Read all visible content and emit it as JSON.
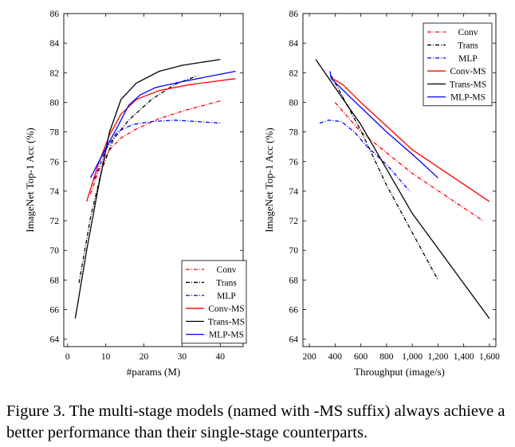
{
  "chart_data": [
    {
      "type": "line",
      "title": "",
      "xlabel": "#params (M)",
      "ylabel": "ImageNet Top-1 Acc (%)",
      "xlim": [
        -1,
        46
      ],
      "ylim": [
        63.5,
        86
      ],
      "xticks": [
        0,
        10,
        20,
        30,
        40
      ],
      "yticks": [
        64,
        66,
        68,
        70,
        72,
        74,
        76,
        78,
        80,
        82,
        84,
        86
      ],
      "legend_position": "bottom-right",
      "grid": false,
      "series": [
        {
          "name": "Conv",
          "color": "#ff0000",
          "dash": "dashdot",
          "points": [
            [
              6,
              73.8
            ],
            [
              8,
              75.3
            ],
            [
              11,
              76.8
            ],
            [
              14,
              77.6
            ],
            [
              18,
              78.2
            ],
            [
              24,
              78.9
            ],
            [
              30,
              79.4
            ],
            [
              40,
              80.1
            ]
          ]
        },
        {
          "name": "Trans",
          "color": "#000000",
          "dash": "dashdot",
          "points": [
            [
              3,
              67.8
            ],
            [
              6,
              72.2
            ],
            [
              9,
              75.5
            ],
            [
              12,
              77.5
            ],
            [
              16,
              78.8
            ],
            [
              22,
              80.2
            ],
            [
              28,
              81.2
            ],
            [
              34,
              81.8
            ]
          ]
        },
        {
          "name": "MLP",
          "color": "#0000ff",
          "dash": "dashdot",
          "points": [
            [
              7,
              74.8
            ],
            [
              10,
              76.8
            ],
            [
              13,
              78.0
            ],
            [
              17,
              78.5
            ],
            [
              22,
              78.7
            ],
            [
              28,
              78.8
            ],
            [
              34,
              78.7
            ],
            [
              40,
              78.6
            ]
          ]
        },
        {
          "name": "Conv-MS",
          "color": "#ff0000",
          "dash": "solid",
          "points": [
            [
              5,
              73.3
            ],
            [
              8,
              75.8
            ],
            [
              11,
              77.8
            ],
            [
              14,
              79.2
            ],
            [
              18,
              80.2
            ],
            [
              24,
              80.8
            ],
            [
              32,
              81.2
            ],
            [
              44,
              81.6
            ]
          ]
        },
        {
          "name": "Trans-MS",
          "color": "#000000",
          "dash": "solid",
          "points": [
            [
              2,
              65.4
            ],
            [
              5,
              70.0
            ],
            [
              8,
              74.2
            ],
            [
              11,
              78.0
            ],
            [
              14,
              80.2
            ],
            [
              18,
              81.3
            ],
            [
              24,
              82.1
            ],
            [
              30,
              82.5
            ],
            [
              40,
              82.9
            ]
          ]
        },
        {
          "name": "MLP-MS",
          "color": "#0000ff",
          "dash": "solid",
          "points": [
            [
              6,
              74.9
            ],
            [
              8,
              75.9
            ],
            [
              10,
              76.9
            ],
            [
              13,
              78.3
            ],
            [
              16,
              79.8
            ],
            [
              19,
              80.5
            ],
            [
              23,
              81.0
            ],
            [
              30,
              81.4
            ],
            [
              38,
              81.8
            ],
            [
              44,
              82.1
            ]
          ]
        }
      ]
    },
    {
      "type": "line",
      "title": "",
      "xlabel": "Throughput (image/s)",
      "ylabel": "ImageNet Top-1 Acc (%)",
      "xlim": [
        150,
        1650
      ],
      "ylim": [
        63.5,
        86
      ],
      "xticks": [
        200,
        400,
        600,
        800,
        1000,
        1200,
        1400,
        1600
      ],
      "xticklabels": [
        "200",
        "400",
        "600",
        "800",
        "1,000",
        "1,200",
        "1,400",
        "1,600"
      ],
      "yticks": [
        64,
        66,
        68,
        70,
        72,
        74,
        76,
        78,
        80,
        82,
        84,
        86
      ],
      "legend_position": "top-right",
      "grid": false,
      "series": [
        {
          "name": "Conv",
          "color": "#ff0000",
          "dash": "dashdot",
          "points": [
            [
              400,
              80.0
            ],
            [
              600,
              78.0
            ],
            [
              1000,
              75.2
            ],
            [
              1550,
              72.0
            ]
          ]
        },
        {
          "name": "Trans",
          "color": "#000000",
          "dash": "dashdot",
          "points": [
            [
              370,
              81.8
            ],
            [
              600,
              78.1
            ],
            [
              800,
              74.4
            ],
            [
              1200,
              68.0
            ]
          ]
        },
        {
          "name": "MLP",
          "color": "#0000ff",
          "dash": "dashdot",
          "points": [
            [
              280,
              78.6
            ],
            [
              350,
              78.8
            ],
            [
              450,
              78.7
            ],
            [
              550,
              78.0
            ],
            [
              650,
              77.0
            ],
            [
              800,
              75.8
            ],
            [
              980,
              74.0
            ]
          ]
        },
        {
          "name": "Conv-MS",
          "color": "#ff0000",
          "dash": "solid",
          "points": [
            [
              380,
              81.6
            ],
            [
              460,
              81.2
            ],
            [
              600,
              80.0
            ],
            [
              1000,
              76.8
            ],
            [
              1600,
              73.3
            ]
          ]
        },
        {
          "name": "Trans-MS",
          "color": "#000000",
          "dash": "solid",
          "points": [
            [
              250,
              82.9
            ],
            [
              400,
              81.0
            ],
            [
              600,
              78.5
            ],
            [
              1000,
              72.5
            ],
            [
              1600,
              65.4
            ]
          ]
        },
        {
          "name": "MLP-MS",
          "color": "#0000ff",
          "dash": "solid",
          "points": [
            [
              360,
              82.1
            ],
            [
              370,
              81.6
            ],
            [
              500,
              80.5
            ],
            [
              800,
              78.0
            ],
            [
              1000,
              76.5
            ],
            [
              1200,
              74.9
            ]
          ]
        }
      ]
    }
  ],
  "caption": "Figure 3. The multi-stage models (named with -MS suffix) always achieve a better performance than their single-stage counterparts."
}
